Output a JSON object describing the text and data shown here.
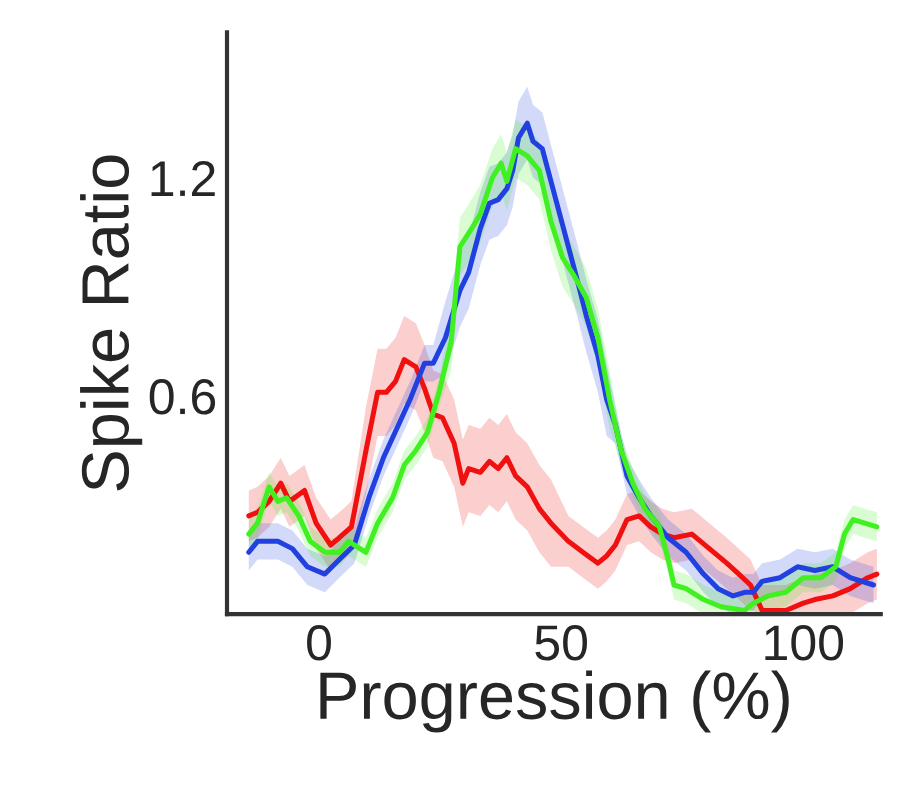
{
  "chart_data": {
    "type": "line",
    "xlabel": "Progression (%)",
    "ylabel": "Spike Ratio",
    "xlim": [
      -19,
      116
    ],
    "ylim": [
      0,
      1.6
    ],
    "xticks": [
      0,
      50,
      100
    ],
    "yticks": [
      0.6,
      1.2
    ],
    "grid": false,
    "line_style": "solid",
    "marker": "none",
    "series": [
      {
        "color": "#f01010",
        "x": [
          -14.5,
          -12.7,
          -10.3,
          -7.9,
          -6.1,
          -3.0,
          -0.6,
          2.4,
          4.2,
          6.7,
          9.7,
          12.1,
          13.9,
          15.8,
          17.6,
          20.0,
          21.8,
          23.6,
          25.5,
          27.9,
          29.7,
          30.9,
          33.3,
          35.2,
          37.0,
          38.8,
          40.6,
          43.0,
          45.5,
          47.9,
          51.5,
          54.5,
          57.6,
          59.4,
          61.2,
          63.6,
          66.1,
          68.5,
          70.9,
          73.3,
          77.0,
          80.6,
          84.2,
          86.7,
          89.1,
          91.5,
          96.4,
          100.0,
          102.4,
          106.1,
          109.7,
          113.3,
          115.2
        ],
        "values": [
          0.27,
          0.28,
          0.31,
          0.36,
          0.31,
          0.34,
          0.25,
          0.19,
          0.21,
          0.24,
          0.45,
          0.61,
          0.61,
          0.64,
          0.7,
          0.68,
          0.62,
          0.55,
          0.54,
          0.47,
          0.36,
          0.4,
          0.39,
          0.42,
          0.4,
          0.43,
          0.38,
          0.35,
          0.29,
          0.25,
          0.2,
          0.17,
          0.14,
          0.16,
          0.19,
          0.26,
          0.27,
          0.24,
          0.22,
          0.21,
          0.22,
          0.18,
          0.14,
          0.11,
          0.08,
          0.01,
          0.01,
          0.03,
          0.04,
          0.05,
          0.07,
          0.1,
          0.11
        ],
        "lower": [
          0.2,
          0.21,
          0.24,
          0.29,
          0.24,
          0.27,
          0.18,
          0.12,
          0.14,
          0.17,
          0.33,
          0.49,
          0.49,
          0.52,
          0.58,
          0.56,
          0.5,
          0.43,
          0.42,
          0.35,
          0.24,
          0.28,
          0.27,
          0.3,
          0.28,
          0.31,
          0.26,
          0.23,
          0.17,
          0.13,
          0.13,
          0.1,
          0.07,
          0.09,
          0.12,
          0.19,
          0.2,
          0.17,
          0.15,
          0.14,
          0.15,
          0.11,
          0.07,
          0.04,
          0.01,
          0.0,
          0.0,
          0.0,
          0.0,
          0.0,
          0.0,
          0.03,
          0.04
        ],
        "upper": [
          0.34,
          0.35,
          0.38,
          0.43,
          0.38,
          0.41,
          0.32,
          0.26,
          0.28,
          0.31,
          0.57,
          0.73,
          0.73,
          0.76,
          0.82,
          0.8,
          0.74,
          0.67,
          0.66,
          0.59,
          0.48,
          0.52,
          0.51,
          0.54,
          0.52,
          0.55,
          0.5,
          0.47,
          0.41,
          0.37,
          0.27,
          0.24,
          0.21,
          0.23,
          0.26,
          0.33,
          0.34,
          0.31,
          0.29,
          0.28,
          0.29,
          0.25,
          0.21,
          0.18,
          0.15,
          0.08,
          0.08,
          0.1,
          0.11,
          0.12,
          0.14,
          0.17,
          0.18
        ]
      },
      {
        "color": "#2040e0",
        "x": [
          -14.5,
          -12.7,
          -8.5,
          -5.5,
          -2.4,
          1.2,
          4.2,
          7.3,
          10.3,
          13.3,
          16.4,
          18.8,
          21.8,
          23.6,
          26.1,
          29.1,
          30.9,
          33.3,
          35.2,
          37.0,
          38.8,
          40.0,
          41.2,
          43.0,
          44.2,
          46.1,
          47.9,
          49.7,
          51.5,
          53.3,
          55.2,
          57.6,
          59.4,
          61.2,
          63.6,
          66.1,
          68.5,
          72.1,
          75.8,
          79.4,
          82.4,
          85.5,
          87.9,
          89.7,
          91.5,
          95.2,
          98.8,
          102.4,
          106.1,
          109.7,
          114.5
        ],
        "values": [
          0.17,
          0.2,
          0.2,
          0.18,
          0.13,
          0.11,
          0.15,
          0.19,
          0.32,
          0.43,
          0.52,
          0.59,
          0.69,
          0.69,
          0.76,
          0.89,
          0.94,
          1.06,
          1.13,
          1.14,
          1.17,
          1.22,
          1.31,
          1.35,
          1.3,
          1.28,
          1.19,
          1.1,
          1.01,
          0.92,
          0.82,
          0.71,
          0.59,
          0.52,
          0.38,
          0.32,
          0.27,
          0.21,
          0.17,
          0.11,
          0.07,
          0.05,
          0.06,
          0.06,
          0.09,
          0.1,
          0.13,
          0.12,
          0.13,
          0.1,
          0.08
        ],
        "lower": [
          0.12,
          0.15,
          0.15,
          0.13,
          0.08,
          0.06,
          0.1,
          0.14,
          0.27,
          0.38,
          0.47,
          0.54,
          0.64,
          0.64,
          0.66,
          0.79,
          0.84,
          0.96,
          1.03,
          1.04,
          1.07,
          1.12,
          1.21,
          1.25,
          1.2,
          1.18,
          1.09,
          1.0,
          0.91,
          0.82,
          0.72,
          0.61,
          0.49,
          0.47,
          0.33,
          0.27,
          0.22,
          0.16,
          0.12,
          0.06,
          0.02,
          0.0,
          0.01,
          0.01,
          0.04,
          0.05,
          0.08,
          0.07,
          0.08,
          0.05,
          0.03
        ],
        "upper": [
          0.22,
          0.25,
          0.25,
          0.23,
          0.18,
          0.16,
          0.2,
          0.24,
          0.37,
          0.48,
          0.57,
          0.64,
          0.74,
          0.74,
          0.86,
          0.99,
          1.04,
          1.16,
          1.23,
          1.24,
          1.27,
          1.32,
          1.41,
          1.45,
          1.4,
          1.38,
          1.29,
          1.2,
          1.11,
          1.02,
          0.92,
          0.81,
          0.69,
          0.57,
          0.43,
          0.37,
          0.32,
          0.26,
          0.22,
          0.16,
          0.12,
          0.1,
          0.11,
          0.11,
          0.14,
          0.15,
          0.18,
          0.17,
          0.18,
          0.15,
          0.13
        ]
      },
      {
        "color": "#40f020",
        "x": [
          -14.5,
          -12.7,
          -10.3,
          -8.5,
          -6.7,
          -4.2,
          -1.8,
          1.2,
          4.2,
          6.1,
          9.7,
          12.1,
          15.2,
          17.6,
          20.0,
          22.4,
          24.8,
          27.3,
          29.1,
          31.5,
          33.3,
          35.8,
          37.6,
          38.8,
          40.6,
          43.0,
          45.5,
          47.9,
          50.3,
          52.7,
          55.2,
          57.6,
          60.0,
          62.4,
          64.8,
          67.3,
          70.3,
          72.1,
          73.3,
          75.8,
          79.4,
          83.0,
          87.9,
          89.7,
          92.7,
          96.4,
          100.0,
          103.6,
          106.7,
          108.5,
          110.3,
          112.7,
          115.2
        ],
        "values": [
          0.22,
          0.25,
          0.35,
          0.31,
          0.32,
          0.27,
          0.2,
          0.17,
          0.17,
          0.2,
          0.17,
          0.25,
          0.32,
          0.41,
          0.45,
          0.5,
          0.61,
          0.75,
          1.01,
          1.06,
          1.1,
          1.2,
          1.24,
          1.19,
          1.28,
          1.26,
          1.22,
          1.08,
          0.98,
          0.93,
          0.87,
          0.76,
          0.59,
          0.45,
          0.36,
          0.29,
          0.24,
          0.15,
          0.08,
          0.07,
          0.04,
          0.02,
          0.01,
          0.03,
          0.05,
          0.06,
          0.1,
          0.1,
          0.13,
          0.22,
          0.26,
          0.25,
          0.24
        ],
        "lower": [
          0.18,
          0.21,
          0.31,
          0.27,
          0.28,
          0.23,
          0.16,
          0.13,
          0.13,
          0.16,
          0.13,
          0.21,
          0.28,
          0.37,
          0.41,
          0.46,
          0.57,
          0.67,
          0.93,
          0.98,
          1.02,
          1.12,
          1.16,
          1.11,
          1.2,
          1.18,
          1.14,
          1.0,
          0.9,
          0.85,
          0.79,
          0.68,
          0.51,
          0.41,
          0.32,
          0.25,
          0.2,
          0.11,
          0.04,
          0.03,
          0.0,
          0.0,
          0.0,
          0.0,
          0.01,
          0.02,
          0.06,
          0.06,
          0.09,
          0.18,
          0.22,
          0.21,
          0.2
        ],
        "upper": [
          0.26,
          0.29,
          0.39,
          0.35,
          0.36,
          0.31,
          0.24,
          0.21,
          0.21,
          0.24,
          0.21,
          0.29,
          0.36,
          0.45,
          0.49,
          0.54,
          0.65,
          0.83,
          1.09,
          1.14,
          1.18,
          1.28,
          1.32,
          1.27,
          1.36,
          1.34,
          1.3,
          1.16,
          1.06,
          1.01,
          0.95,
          0.84,
          0.67,
          0.49,
          0.4,
          0.33,
          0.28,
          0.19,
          0.12,
          0.11,
          0.08,
          0.06,
          0.05,
          0.07,
          0.09,
          0.1,
          0.14,
          0.14,
          0.17,
          0.26,
          0.3,
          0.29,
          0.28
        ]
      }
    ]
  }
}
